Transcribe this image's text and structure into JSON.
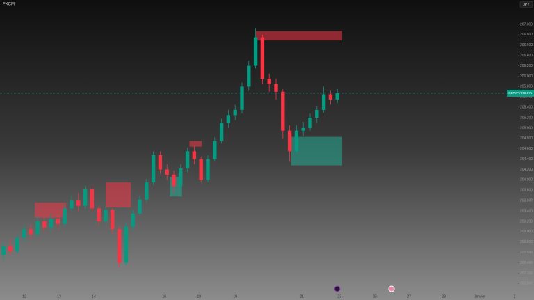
{
  "chart_data": {
    "type": "candlestick",
    "title": "FXCM",
    "symbol": "GBPJPY",
    "currency": "JPY",
    "up_color": "#089981",
    "down_color": "#f23645",
    "x": [
      0,
      1,
      2,
      3,
      4,
      5,
      6,
      7,
      8,
      9,
      10,
      11,
      12,
      13,
      14,
      15,
      16,
      17,
      18,
      19,
      20,
      21,
      22,
      23,
      24,
      25,
      26,
      27,
      28,
      29,
      30,
      31,
      32,
      33,
      34,
      35,
      36,
      37,
      38,
      39,
      40,
      41,
      42,
      43,
      44,
      45,
      46,
      47,
      48,
      49
    ],
    "open": [
      202.55,
      202.72,
      202.62,
      202.88,
      203.05,
      202.95,
      203.2,
      203.08,
      203.25,
      203.15,
      203.45,
      203.6,
      203.5,
      203.82,
      203.45,
      203.2,
      203.42,
      203.05,
      202.4,
      203.1,
      203.35,
      203.62,
      203.95,
      204.48,
      204.2,
      204.1,
      203.88,
      204.22,
      204.55,
      204.4,
      204.0,
      204.4,
      204.75,
      205.1,
      205.25,
      205.35,
      205.8,
      206.2,
      206.75,
      205.95,
      205.85,
      205.7,
      204.95,
      204.55,
      204.95,
      205.0,
      205.2,
      205.35,
      205.65,
      205.55
    ],
    "high": [
      202.8,
      202.85,
      202.95,
      203.12,
      203.15,
      203.3,
      203.28,
      203.35,
      203.32,
      203.52,
      203.7,
      203.75,
      203.88,
      203.86,
      203.5,
      203.5,
      203.45,
      203.1,
      203.18,
      203.42,
      203.7,
      204.02,
      204.55,
      204.55,
      204.3,
      204.18,
      204.3,
      204.62,
      204.65,
      204.45,
      204.48,
      204.82,
      205.18,
      205.35,
      205.45,
      205.88,
      206.3,
      206.93,
      206.8,
      206.05,
      205.95,
      205.75,
      205.05,
      205.05,
      205.12,
      205.28,
      205.42,
      205.8,
      205.72,
      205.75
    ],
    "low": [
      202.45,
      202.55,
      202.58,
      202.8,
      202.85,
      202.9,
      202.98,
      203.0,
      203.05,
      203.1,
      203.38,
      203.4,
      203.45,
      203.38,
      203.12,
      203.15,
      202.95,
      202.3,
      202.35,
      203.02,
      203.3,
      203.55,
      203.9,
      204.12,
      204.0,
      203.75,
      203.8,
      204.15,
      204.3,
      203.95,
      203.95,
      204.35,
      204.7,
      205.0,
      205.15,
      205.28,
      205.72,
      206.15,
      205.85,
      205.7,
      205.55,
      204.8,
      204.35,
      204.5,
      204.85,
      204.95,
      205.1,
      205.3,
      205.45,
      205.48
    ],
    "close": [
      202.72,
      202.62,
      202.88,
      203.05,
      202.95,
      203.2,
      203.08,
      203.25,
      203.15,
      203.45,
      203.6,
      203.5,
      203.82,
      203.45,
      203.2,
      203.42,
      203.05,
      202.4,
      203.1,
      203.35,
      203.62,
      203.95,
      204.48,
      204.2,
      204.1,
      203.88,
      204.22,
      204.55,
      204.4,
      204.0,
      204.4,
      204.75,
      205.1,
      205.25,
      205.35,
      205.8,
      206.2,
      206.75,
      205.95,
      205.85,
      205.7,
      204.95,
      204.55,
      204.95,
      205.0,
      205.2,
      205.35,
      205.65,
      205.55,
      205.671
    ],
    "zones": [
      {
        "color": "#f23645",
        "x0": 37,
        "x1": 49.7,
        "top": 206.87,
        "bottom": 206.69
      },
      {
        "color": "#f23645",
        "x0": 4.6,
        "x1": 9.2,
        "top": 203.56,
        "bottom": 203.27
      },
      {
        "color": "#f23645",
        "x0": 15,
        "x1": 18.7,
        "top": 203.95,
        "bottom": 203.47
      },
      {
        "color": "#f23645",
        "x0": 27.3,
        "x1": 29.1,
        "top": 204.75,
        "bottom": 204.64
      },
      {
        "color": "#22ab94",
        "x0": 24.4,
        "x1": 26.2,
        "top": 204.06,
        "bottom": 203.68
      },
      {
        "color": "#22ab94",
        "x0": 42.2,
        "x1": 49.7,
        "top": 204.83,
        "bottom": 204.28
      }
    ],
    "xlim": [
      -0.51,
      75.51
    ],
    "ylim": [
      201.83,
      207.47
    ],
    "xticks": [
      {
        "value": 3.06,
        "label": "12"
      },
      {
        "value": 8.16,
        "label": "13"
      },
      {
        "value": 13.27,
        "label": "14"
      },
      {
        "value": 23.6,
        "label": "16"
      },
      {
        "value": 28.7,
        "label": "18"
      },
      {
        "value": 34.0,
        "label": "19"
      },
      {
        "value": 43.8,
        "label": "21"
      },
      {
        "value": 49.3,
        "label": "23"
      },
      {
        "value": 54.5,
        "label": "26"
      },
      {
        "value": 59.5,
        "label": "27"
      },
      {
        "value": 64.6,
        "label": "28"
      },
      {
        "value": 69.9,
        "label": "Janvier"
      },
      {
        "value": 75.0,
        "label": "2"
      }
    ],
    "yticks": [
      {
        "value": 207.0,
        "label": "207.000"
      },
      {
        "value": 206.8,
        "label": "206.800"
      },
      {
        "value": 206.6,
        "label": "206.600"
      },
      {
        "value": 206.4,
        "label": "206.400"
      },
      {
        "value": 206.2,
        "label": "206.200"
      },
      {
        "value": 206.0,
        "label": "206.000"
      },
      {
        "value": 205.8,
        "label": "205.800"
      },
      {
        "value": 205.6,
        "label": "205.600"
      },
      {
        "value": 205.4,
        "label": "205.400"
      },
      {
        "value": 205.2,
        "label": "205.200"
      },
      {
        "value": 205.0,
        "label": "205.000"
      },
      {
        "value": 204.8,
        "label": "204.800"
      },
      {
        "value": 204.6,
        "label": "204.600"
      },
      {
        "value": 204.4,
        "label": "204.400"
      },
      {
        "value": 204.2,
        "label": "204.200"
      },
      {
        "value": 204.0,
        "label": "204.000"
      },
      {
        "value": 203.8,
        "label": "203.800"
      },
      {
        "value": 203.6,
        "label": "203.600"
      },
      {
        "value": 203.4,
        "label": "203.400"
      },
      {
        "value": 203.2,
        "label": "203.200"
      },
      {
        "value": 203.0,
        "label": "203.000"
      },
      {
        "value": 202.8,
        "label": "202.800"
      },
      {
        "value": 202.6,
        "label": "202.600"
      },
      {
        "value": 202.4,
        "label": "202.400"
      },
      {
        "value": 202.2,
        "label": "202.200"
      },
      {
        "value": 202.0,
        "label": "202.000"
      }
    ]
  }
}
